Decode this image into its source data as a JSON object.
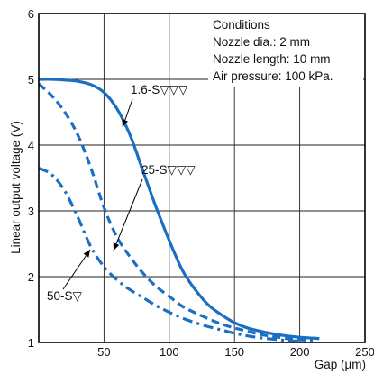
{
  "chart_data": {
    "type": "line",
    "xlabel": "Gap (µm)",
    "ylabel": "Linear output voltage (V)",
    "xlim": [
      0,
      250
    ],
    "ylim": [
      1,
      6
    ],
    "x_ticks": [
      "50",
      "100",
      "150",
      "200",
      "250"
    ],
    "y_ticks": [
      "1",
      "2",
      "3",
      "4",
      "5",
      "6"
    ],
    "grid": true,
    "conditions": {
      "title": "Conditions",
      "lines": [
        "Nozzle dia.: 2 mm",
        "Nozzle length: 10 mm",
        "Air pressure: 100 kPa."
      ]
    },
    "series": [
      {
        "name": "1.6-S▽▽▽",
        "style": "solid",
        "x": [
          0,
          10,
          20,
          30,
          40,
          50,
          60,
          70,
          80,
          90,
          100,
          110,
          120,
          130,
          140,
          150,
          160,
          170,
          180,
          190,
          200,
          215
        ],
        "y": [
          5.0,
          5.0,
          4.99,
          4.97,
          4.92,
          4.8,
          4.55,
          4.15,
          3.6,
          3.05,
          2.55,
          2.1,
          1.8,
          1.57,
          1.42,
          1.3,
          1.22,
          1.17,
          1.13,
          1.1,
          1.08,
          1.06
        ]
      },
      {
        "name": "25-S▽▽▽",
        "style": "dashed",
        "x": [
          0,
          10,
          20,
          30,
          40,
          50,
          60,
          70,
          80,
          90,
          100,
          110,
          120,
          130,
          140,
          150,
          160,
          170,
          180,
          190,
          200,
          210
        ],
        "y": [
          4.93,
          4.75,
          4.5,
          4.15,
          3.65,
          3.05,
          2.6,
          2.3,
          2.05,
          1.85,
          1.7,
          1.55,
          1.45,
          1.36,
          1.28,
          1.22,
          1.17,
          1.12,
          1.09,
          1.06,
          1.04,
          1.03
        ]
      },
      {
        "name": "50-S▽",
        "style": "dash-dot",
        "x": [
          0,
          10,
          20,
          30,
          40,
          50,
          60,
          70,
          80,
          90,
          100,
          110,
          120,
          130,
          140,
          150,
          160,
          170,
          180,
          190,
          200
        ],
        "y": [
          3.65,
          3.55,
          3.3,
          2.9,
          2.45,
          2.15,
          1.95,
          1.8,
          1.68,
          1.56,
          1.46,
          1.37,
          1.3,
          1.24,
          1.19,
          1.14,
          1.1,
          1.07,
          1.05,
          1.03,
          1.02
        ]
      }
    ],
    "colors": {
      "series": "#1a6fc2",
      "grid": "#222222",
      "axis": "#000000"
    }
  }
}
